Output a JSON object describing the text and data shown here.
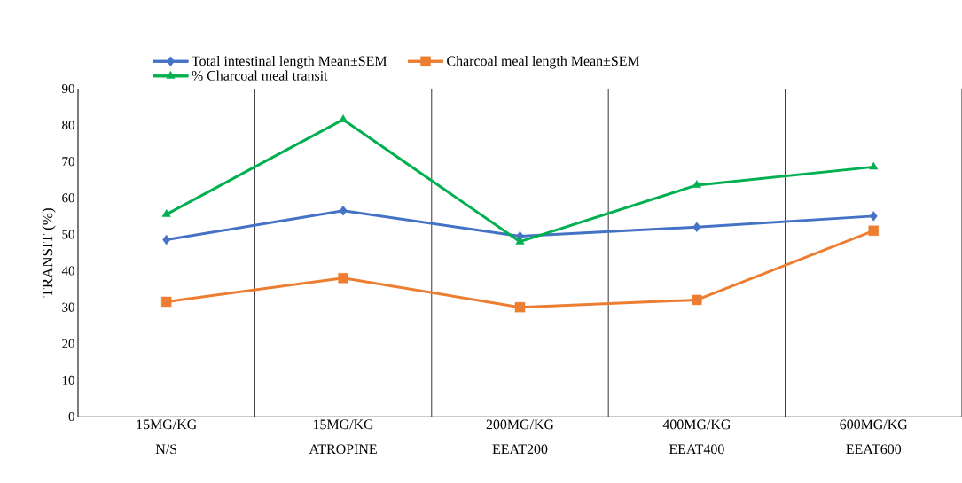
{
  "chart_data": {
    "type": "line",
    "ylabel": "TRANSIT (%)",
    "categories": [
      "15MG/KG N/S",
      "15MG/KG ATROPINE",
      "200MG/KG EEAT200",
      "400MG/KG EEAT400",
      "600MG/KG EEAT600"
    ],
    "series": [
      {
        "name": "Total intestinal length Mean±SEM",
        "color": "#4472c4",
        "marker": "diamond",
        "values": [
          48.5,
          56.5,
          49.5,
          52,
          55
        ]
      },
      {
        "name": "Charcoal meal length Mean±SEM",
        "color": "#ed7d31",
        "marker": "square",
        "values": [
          31.5,
          38,
          30,
          32,
          51
        ]
      },
      {
        "name": "% Charcoal meal transit",
        "color": "#00b050",
        "marker": "triangle",
        "values": [
          55.5,
          81.5,
          48,
          63.5,
          68.5
        ]
      }
    ],
    "ylim": [
      0,
      90
    ],
    "yticks": [
      0,
      10,
      20,
      30,
      40,
      50,
      60,
      70,
      80,
      90
    ],
    "grid": "x",
    "legend": "top"
  }
}
